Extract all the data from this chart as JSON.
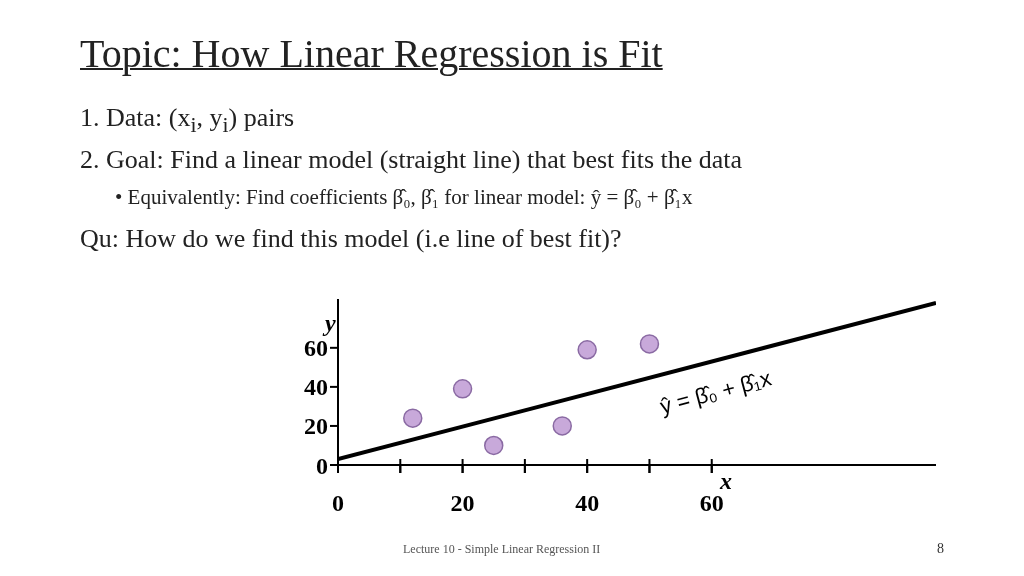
{
  "chart_data": {
    "type": "scatter",
    "title": "Topic: How Linear Regression is Fit",
    "xlabel": "x",
    "ylabel": "y",
    "annotations": [
      "1.  Data: (x$_{i}$, y$_{i}$) pairs",
      "2.  Goal: Find a linear model (straight line) that best fits the data",
      "• Equivalently: Find coefficients β̂₀, β̂₁ for linear model:  ŷ = β̂₀ + β̂₁x",
      "Qu: How do we find this model (i.e line of best fit)?",
      "Lecture 10 - Simple Linear Regression II",
      "8"
    ],
    "xlim": [
      0,
      96
    ],
    "ylim": [
      0,
      85
    ],
    "xticks": [
      0,
      {
        "value": 10,
        "label": null
      },
      20,
      {
        "value": 30,
        "label": null
      },
      40,
      {
        "value": 50,
        "label": null
      },
      60
    ],
    "yticks": [
      0,
      20,
      40,
      60
    ],
    "series": [
      {
        "marker": "circle",
        "color": "#c8a9da",
        "x": [
          12,
          20,
          25,
          36,
          40,
          50
        ],
        "values": [
          24,
          39,
          10,
          20,
          59,
          62
        ]
      },
      {
        "type": "line",
        "marker": "none",
        "name": "ŷ = β̂₀ + β̂₁x",
        "color": "#000000",
        "x": [
          0,
          96
        ],
        "values": [
          3,
          83
        ]
      }
    ]
  }
}
